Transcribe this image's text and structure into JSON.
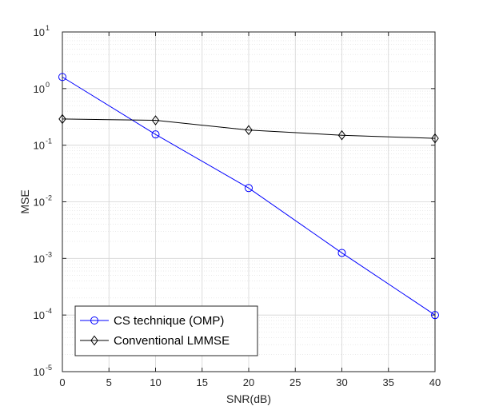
{
  "chart_data": {
    "type": "line",
    "xlabel": "SNR(dB)",
    "ylabel": "MSE",
    "xlim": [
      0,
      40
    ],
    "ylim_log10": [
      -5,
      1
    ],
    "y_scale": "log",
    "x_ticks": [
      0,
      5,
      10,
      15,
      20,
      25,
      30,
      35,
      40
    ],
    "y_tick_exponents": [
      -5,
      -4,
      -3,
      -2,
      -1,
      0,
      1
    ],
    "y_tick_base": "10",
    "grid": true,
    "minor_grid": true,
    "legend_position": "bottom-left",
    "series": [
      {
        "name": "CS technique (OMP)",
        "color": "#0000ff",
        "marker": "circle",
        "x": [
          0,
          10,
          20,
          30,
          40
        ],
        "y": [
          1.6,
          0.155,
          0.0175,
          0.00125,
          0.0001
        ]
      },
      {
        "name": "Conventional LMMSE",
        "color": "#000000",
        "marker": "diamond",
        "x": [
          0,
          10,
          20,
          30,
          40
        ],
        "y": [
          0.29,
          0.275,
          0.185,
          0.15,
          0.132
        ]
      }
    ]
  }
}
